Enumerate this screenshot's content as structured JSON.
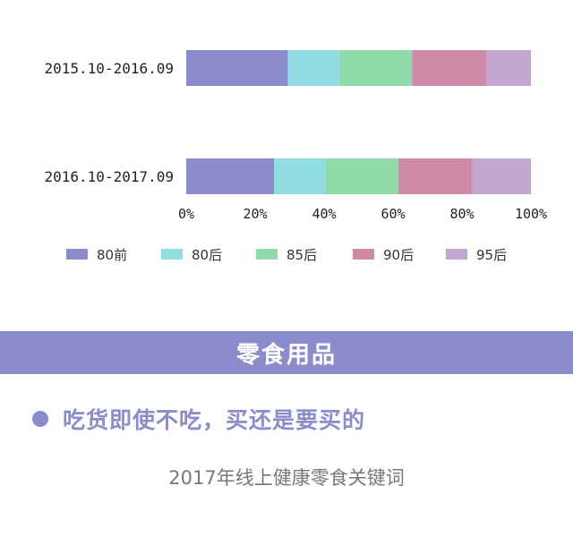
{
  "chart_data": {
    "type": "bar",
    "orientation": "horizontal",
    "stacked": true,
    "categories": [
      "2015.10-2016.09",
      "2016.10-2017.09"
    ],
    "series": [
      {
        "name": "80前",
        "color": "#8a8ccc",
        "values": [
          29.5,
          25.5
        ]
      },
      {
        "name": "80后",
        "color": "#8fdde0",
        "values": [
          15.0,
          15.0
        ]
      },
      {
        "name": "85后",
        "color": "#90d9a8",
        "values": [
          21.0,
          21.0
        ]
      },
      {
        "name": "90后",
        "color": "#cf8aa5",
        "values": [
          21.5,
          21.5
        ]
      },
      {
        "name": "95后",
        "color": "#c0a6d0",
        "values": [
          13.0,
          17.0
        ]
      }
    ],
    "xlim": [
      0,
      100
    ],
    "xticks": [
      "0%",
      "20%",
      "40%",
      "60%",
      "80%",
      "100%"
    ],
    "legend_position": "bottom",
    "grid": false
  },
  "banner": {
    "title": "零食用品"
  },
  "headline": {
    "text": "吃货即使不吃，买还是要买的"
  },
  "subheading": {
    "text": "2017年线上健康零食关键词"
  }
}
